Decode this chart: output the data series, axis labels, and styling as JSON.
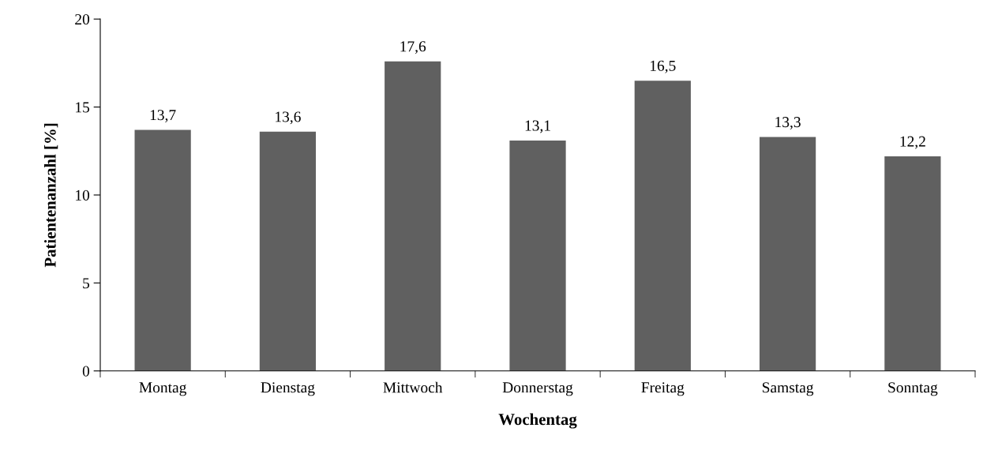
{
  "chart_data": {
    "type": "bar",
    "xlabel": "Wochentag",
    "ylabel": "Patientenanzahl [%]",
    "categories": [
      "Montag",
      "Dienstag",
      "Mittwoch",
      "Donnerstag",
      "Freitag",
      "Samstag",
      "Sonntag"
    ],
    "values": [
      13.7,
      13.6,
      17.6,
      13.1,
      16.5,
      13.3,
      12.2
    ],
    "value_labels": [
      "13,7",
      "13,6",
      "17,6",
      "13,1",
      "16,5",
      "13,3",
      "12,2"
    ],
    "color": "#606060",
    "ylim": [
      0,
      20
    ],
    "yticks": [
      0,
      5,
      10,
      15,
      20
    ],
    "grid": false,
    "legend": false
  }
}
